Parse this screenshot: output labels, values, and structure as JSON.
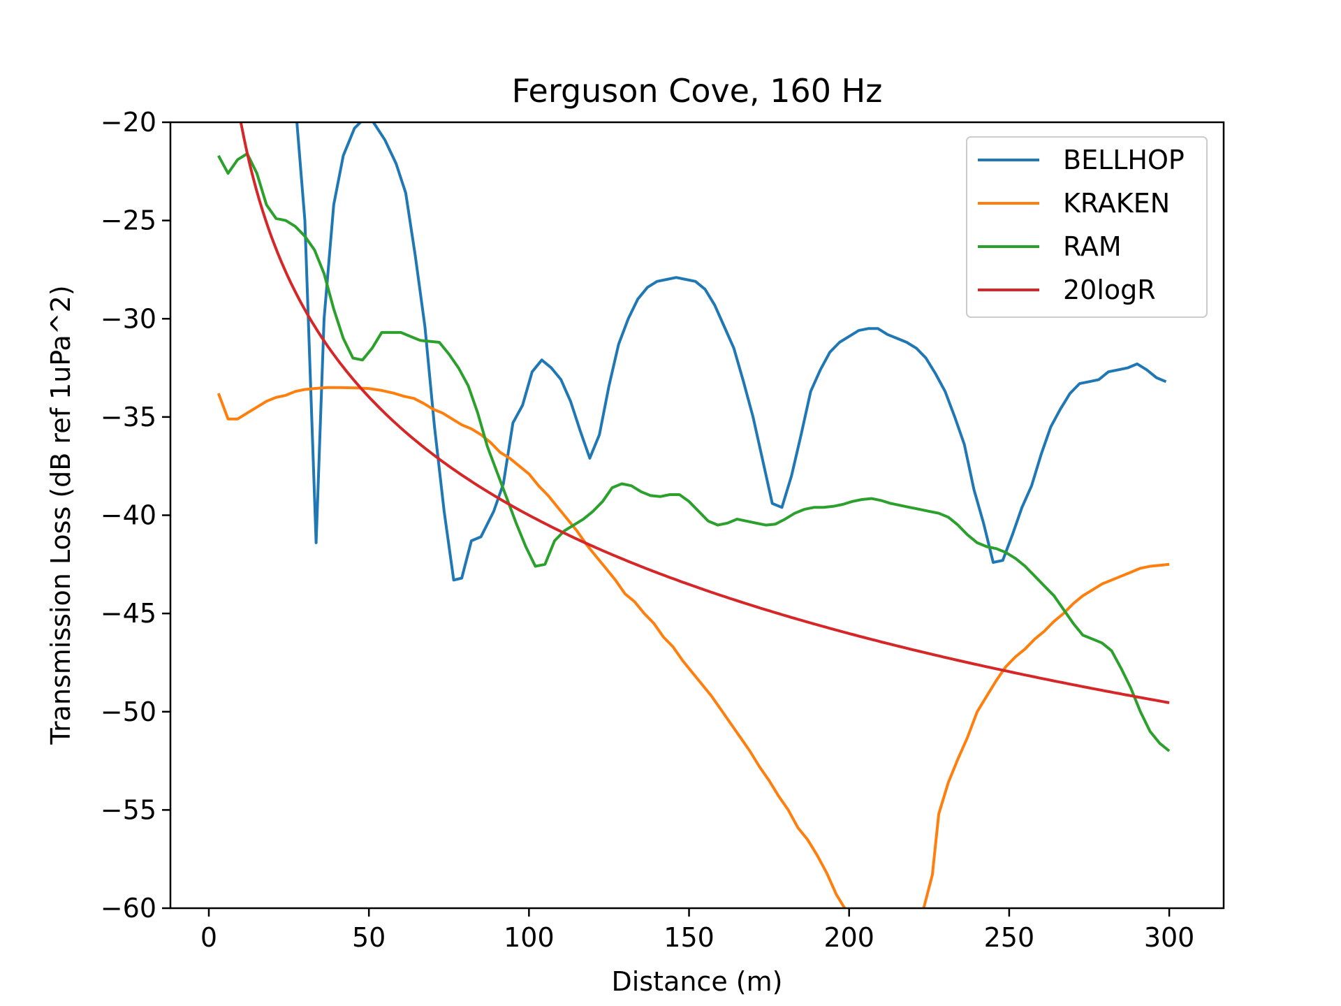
{
  "chart_data": {
    "type": "line",
    "title": "Ferguson Cove, 160 Hz",
    "xlabel": "Distance (m)",
    "ylabel": "Transmission Loss (dB ref 1uPa^2)",
    "xlim": [
      -12,
      317
    ],
    "ylim": [
      -60,
      -20
    ],
    "xticks": [
      0,
      50,
      100,
      150,
      200,
      250,
      300
    ],
    "yticks": [
      -60,
      -55,
      -50,
      -45,
      -40,
      -35,
      -30,
      -25,
      -20
    ],
    "grid": false,
    "legend_position": "top-right",
    "series": [
      {
        "name": "BELLHOP",
        "color": "#1f77b4",
        "points": [
          [
            27,
            -19
          ],
          [
            30,
            -25
          ],
          [
            33.5,
            -41.4
          ],
          [
            36,
            -30
          ],
          [
            39,
            -24.2
          ],
          [
            42,
            -21.7
          ],
          [
            45.5,
            -20.3
          ],
          [
            48,
            -19.9
          ],
          [
            51,
            -19.9
          ],
          [
            55,
            -20.9
          ],
          [
            58.5,
            -22.1
          ],
          [
            61.5,
            -23.6
          ],
          [
            64.5,
            -26.8
          ],
          [
            67.5,
            -30.4
          ],
          [
            70.5,
            -35.5
          ],
          [
            73.5,
            -39.8
          ],
          [
            76.5,
            -43.3
          ],
          [
            79,
            -43.2
          ],
          [
            82,
            -41.3
          ],
          [
            85,
            -41.1
          ],
          [
            89,
            -39.8
          ],
          [
            92,
            -38.4
          ],
          [
            95,
            -35.3
          ],
          [
            98,
            -34.4
          ],
          [
            101,
            -32.7
          ],
          [
            104,
            -32.1
          ],
          [
            107,
            -32.5
          ],
          [
            110,
            -33.1
          ],
          [
            113,
            -34.2
          ],
          [
            116,
            -35.7
          ],
          [
            119,
            -37.1
          ],
          [
            122,
            -35.9
          ],
          [
            125,
            -33.4
          ],
          [
            128,
            -31.3
          ],
          [
            131,
            -30
          ],
          [
            134,
            -29
          ],
          [
            137,
            -28.4
          ],
          [
            140,
            -28.1
          ],
          [
            143,
            -28
          ],
          [
            146,
            -27.9
          ],
          [
            149,
            -28
          ],
          [
            152,
            -28.1
          ],
          [
            155,
            -28.5
          ],
          [
            158,
            -29.3
          ],
          [
            161,
            -30.4
          ],
          [
            164,
            -31.5
          ],
          [
            167,
            -33.2
          ],
          [
            170,
            -35
          ],
          [
            173,
            -37.2
          ],
          [
            176,
            -39.4
          ],
          [
            179,
            -39.6
          ],
          [
            182,
            -38
          ],
          [
            185,
            -35.9
          ],
          [
            188,
            -33.7
          ],
          [
            191,
            -32.6
          ],
          [
            194,
            -31.7
          ],
          [
            197,
            -31.2
          ],
          [
            200,
            -30.9
          ],
          [
            203,
            -30.6
          ],
          [
            206,
            -30.5
          ],
          [
            209,
            -30.5
          ],
          [
            212,
            -30.8
          ],
          [
            215,
            -31
          ],
          [
            218,
            -31.2
          ],
          [
            221,
            -31.5
          ],
          [
            224,
            -32
          ],
          [
            227,
            -32.8
          ],
          [
            230,
            -33.7
          ],
          [
            233,
            -35
          ],
          [
            236,
            -36.4
          ],
          [
            239,
            -38.7
          ],
          [
            242,
            -40.4
          ],
          [
            245,
            -42.4
          ],
          [
            248,
            -42.3
          ],
          [
            251,
            -41
          ],
          [
            254,
            -39.6
          ],
          [
            257,
            -38.5
          ],
          [
            260,
            -36.9
          ],
          [
            263,
            -35.5
          ],
          [
            266,
            -34.6
          ],
          [
            269,
            -33.8
          ],
          [
            272,
            -33.3
          ],
          [
            275,
            -33.2
          ],
          [
            278,
            -33.1
          ],
          [
            281,
            -32.7
          ],
          [
            284,
            -32.6
          ],
          [
            287,
            -32.5
          ],
          [
            290,
            -32.3
          ],
          [
            293,
            -32.6
          ],
          [
            296,
            -33
          ],
          [
            299,
            -33.2
          ]
        ]
      },
      {
        "name": "KRAKEN",
        "color": "#ff7f0e",
        "points": [
          [
            3,
            -33.8
          ],
          [
            6,
            -35.1
          ],
          [
            9,
            -35.1
          ],
          [
            12,
            -34.8
          ],
          [
            15,
            -34.5
          ],
          [
            18,
            -34.2
          ],
          [
            21,
            -34
          ],
          [
            24,
            -33.9
          ],
          [
            27,
            -33.7
          ],
          [
            30,
            -33.6
          ],
          [
            33,
            -33.55
          ],
          [
            37,
            -33.5
          ],
          [
            41,
            -33.5
          ],
          [
            46,
            -33.52
          ],
          [
            50,
            -33.55
          ],
          [
            54,
            -33.65
          ],
          [
            58,
            -33.8
          ],
          [
            61,
            -33.95
          ],
          [
            64,
            -34.05
          ],
          [
            67,
            -34.3
          ],
          [
            70,
            -34.6
          ],
          [
            73,
            -34.8
          ],
          [
            76,
            -35.1
          ],
          [
            79,
            -35.4
          ],
          [
            82,
            -35.6
          ],
          [
            85,
            -35.9
          ],
          [
            88,
            -36.3
          ],
          [
            91,
            -36.8
          ],
          [
            94,
            -37.1
          ],
          [
            97,
            -37.5
          ],
          [
            100,
            -37.9
          ],
          [
            103,
            -38.5
          ],
          [
            106,
            -39
          ],
          [
            109,
            -39.6
          ],
          [
            112,
            -40.2
          ],
          [
            115,
            -40.8
          ],
          [
            118,
            -41.5
          ],
          [
            121,
            -42.1
          ],
          [
            124,
            -42.7
          ],
          [
            127,
            -43.3
          ],
          [
            130,
            -44
          ],
          [
            133,
            -44.4
          ],
          [
            136,
            -45
          ],
          [
            139,
            -45.5
          ],
          [
            142,
            -46.2
          ],
          [
            145,
            -46.7
          ],
          [
            148,
            -47.4
          ],
          [
            151,
            -48
          ],
          [
            154,
            -48.6
          ],
          [
            157,
            -49.2
          ],
          [
            160,
            -49.9
          ],
          [
            163,
            -50.6
          ],
          [
            166,
            -51.3
          ],
          [
            169,
            -52
          ],
          [
            172,
            -52.8
          ],
          [
            175,
            -53.5
          ],
          [
            178,
            -54.3
          ],
          [
            181,
            -55
          ],
          [
            184,
            -55.9
          ],
          [
            187,
            -56.5
          ],
          [
            190,
            -57.3
          ],
          [
            193,
            -58.2
          ],
          [
            196,
            -59.3
          ],
          [
            199,
            -60.1
          ],
          [
            202,
            -61
          ],
          [
            205,
            -62
          ],
          [
            207,
            -64
          ],
          [
            219,
            -64
          ],
          [
            221,
            -62
          ],
          [
            223,
            -60.2
          ],
          [
            226,
            -58.3
          ],
          [
            228,
            -55.2
          ],
          [
            231,
            -53.6
          ],
          [
            234,
            -52.4
          ],
          [
            237,
            -51.3
          ],
          [
            240,
            -50
          ],
          [
            243,
            -49.2
          ],
          [
            246,
            -48.4
          ],
          [
            249,
            -47.7
          ],
          [
            252,
            -47.2
          ],
          [
            255,
            -46.8
          ],
          [
            258,
            -46.3
          ],
          [
            261,
            -45.9
          ],
          [
            264,
            -45.4
          ],
          [
            267,
            -45
          ],
          [
            270,
            -44.5
          ],
          [
            273,
            -44.1
          ],
          [
            276,
            -43.8
          ],
          [
            279,
            -43.5
          ],
          [
            282,
            -43.3
          ],
          [
            285,
            -43.1
          ],
          [
            288,
            -42.9
          ],
          [
            291,
            -42.7
          ],
          [
            294,
            -42.6
          ],
          [
            297,
            -42.55
          ],
          [
            300,
            -42.5
          ]
        ]
      },
      {
        "name": "RAM",
        "color": "#2ca02c",
        "points": [
          [
            3,
            -21.7
          ],
          [
            6,
            -22.6
          ],
          [
            9,
            -21.9
          ],
          [
            12,
            -21.6
          ],
          [
            15,
            -22.6
          ],
          [
            18,
            -24.2
          ],
          [
            21,
            -24.9
          ],
          [
            24,
            -25
          ],
          [
            27,
            -25.3
          ],
          [
            30,
            -25.8
          ],
          [
            33,
            -26.5
          ],
          [
            36,
            -27.7
          ],
          [
            39,
            -29.5
          ],
          [
            42,
            -31
          ],
          [
            45,
            -32
          ],
          [
            48,
            -32.1
          ],
          [
            51,
            -31.5
          ],
          [
            54,
            -30.7
          ],
          [
            57,
            -30.7
          ],
          [
            60,
            -30.7
          ],
          [
            63,
            -30.9
          ],
          [
            66,
            -31.1
          ],
          [
            69,
            -31.15
          ],
          [
            72,
            -31.2
          ],
          [
            75,
            -31.8
          ],
          [
            78,
            -32.5
          ],
          [
            81,
            -33.4
          ],
          [
            84,
            -34.8
          ],
          [
            87,
            -36.5
          ],
          [
            90,
            -37.8
          ],
          [
            93,
            -39.1
          ],
          [
            96,
            -40.4
          ],
          [
            99,
            -41.6
          ],
          [
            102,
            -42.6
          ],
          [
            105,
            -42.5
          ],
          [
            108,
            -41.3
          ],
          [
            111,
            -40.8
          ],
          [
            114,
            -40.5
          ],
          [
            117,
            -40.2
          ],
          [
            120,
            -39.8
          ],
          [
            123,
            -39.3
          ],
          [
            126,
            -38.6
          ],
          [
            129,
            -38.4
          ],
          [
            132,
            -38.5
          ],
          [
            135,
            -38.8
          ],
          [
            138,
            -39
          ],
          [
            141,
            -39.05
          ],
          [
            144,
            -38.95
          ],
          [
            147,
            -38.95
          ],
          [
            150,
            -39.3
          ],
          [
            153,
            -39.8
          ],
          [
            156,
            -40.3
          ],
          [
            159,
            -40.5
          ],
          [
            162,
            -40.4
          ],
          [
            165,
            -40.2
          ],
          [
            168,
            -40.3
          ],
          [
            171,
            -40.4
          ],
          [
            174,
            -40.5
          ],
          [
            177,
            -40.45
          ],
          [
            180,
            -40.2
          ],
          [
            183,
            -39.9
          ],
          [
            186,
            -39.7
          ],
          [
            189,
            -39.6
          ],
          [
            192,
            -39.6
          ],
          [
            195,
            -39.55
          ],
          [
            198,
            -39.45
          ],
          [
            201,
            -39.3
          ],
          [
            204,
            -39.2
          ],
          [
            207,
            -39.15
          ],
          [
            210,
            -39.25
          ],
          [
            213,
            -39.4
          ],
          [
            216,
            -39.5
          ],
          [
            219,
            -39.6
          ],
          [
            222,
            -39.7
          ],
          [
            225,
            -39.8
          ],
          [
            228,
            -39.9
          ],
          [
            231,
            -40.1
          ],
          [
            234,
            -40.5
          ],
          [
            237,
            -41
          ],
          [
            240,
            -41.4
          ],
          [
            243,
            -41.6
          ],
          [
            246,
            -41.7
          ],
          [
            249,
            -41.9
          ],
          [
            252,
            -42.2
          ],
          [
            255,
            -42.6
          ],
          [
            258,
            -43.1
          ],
          [
            261,
            -43.6
          ],
          [
            264,
            -44.1
          ],
          [
            267,
            -44.8
          ],
          [
            270,
            -45.5
          ],
          [
            273,
            -46.1
          ],
          [
            276,
            -46.3
          ],
          [
            279,
            -46.5
          ],
          [
            282,
            -46.9
          ],
          [
            285,
            -47.8
          ],
          [
            288,
            -48.8
          ],
          [
            291,
            -50
          ],
          [
            294,
            -51
          ],
          [
            297,
            -51.6
          ],
          [
            300,
            -52
          ]
        ]
      },
      {
        "name": "20logR",
        "color": "#d62728",
        "function": "-20*log10(x)",
        "x_range": [
          10,
          300
        ]
      }
    ]
  }
}
